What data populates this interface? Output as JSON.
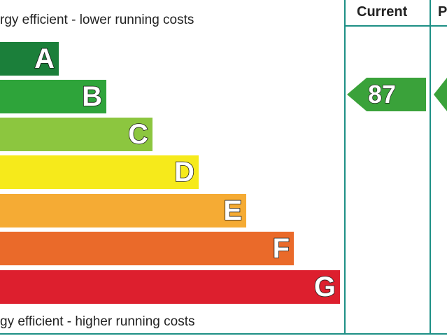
{
  "captions": {
    "top": "rgy efficient - lower running costs",
    "bottom": "gy efficient - higher running costs"
  },
  "bands": [
    {
      "letter": "A",
      "color": "#1b7f3a"
    },
    {
      "letter": "B",
      "color": "#2ea43a"
    },
    {
      "letter": "C",
      "color": "#8cc63f"
    },
    {
      "letter": "D",
      "color": "#f6ea1b"
    },
    {
      "letter": "E",
      "color": "#f5ab34"
    },
    {
      "letter": "F",
      "color": "#ea6a2a"
    },
    {
      "letter": "G",
      "color": "#dd1f2e"
    }
  ],
  "columns": {
    "current": "Current",
    "potential": "P"
  },
  "current_rating": {
    "value": "87",
    "band": "B",
    "color": "#3aa23a"
  },
  "potential_rating": {
    "band": "B",
    "color": "#3aa23a"
  },
  "frame_color": "#1d8f85"
}
